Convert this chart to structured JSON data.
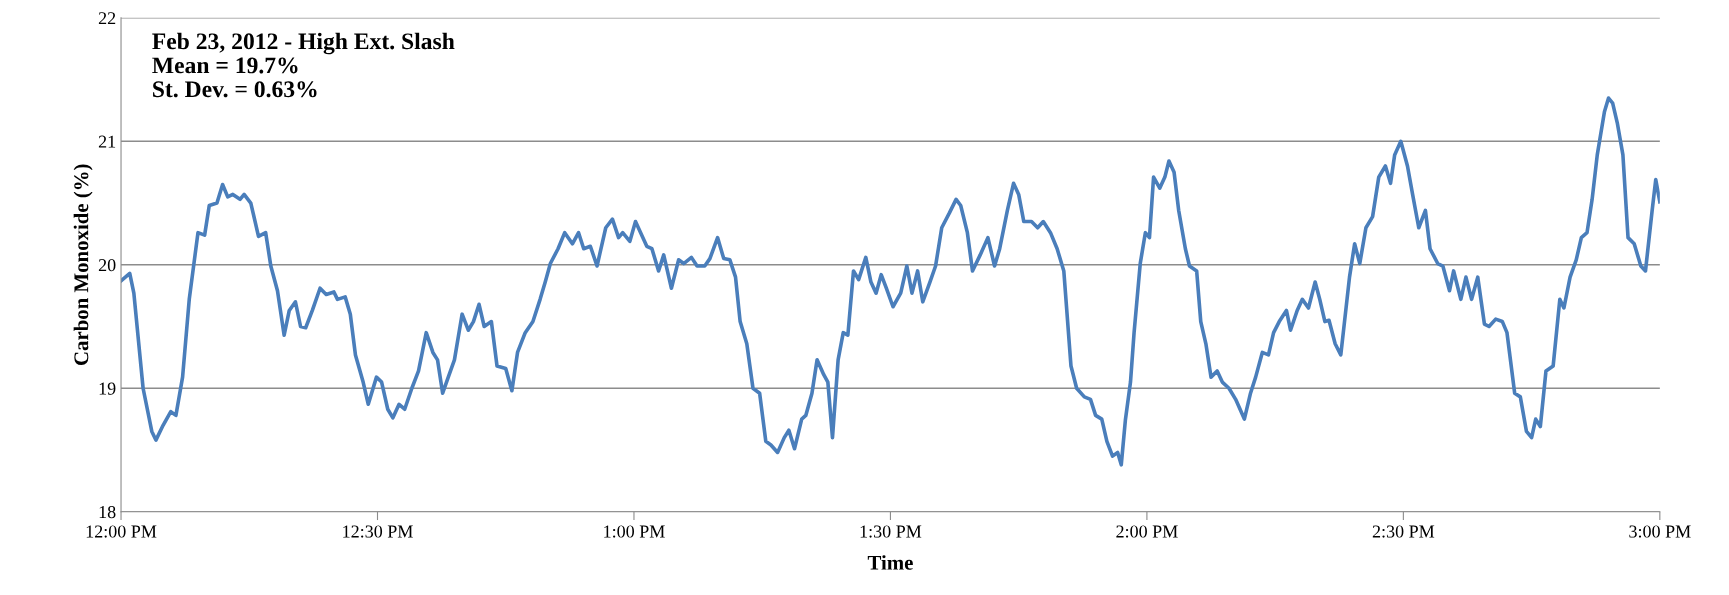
{
  "chart_data": {
    "type": "line",
    "xlabel": "Time",
    "ylabel": "Carbon Monoxide (%)",
    "annotations": [
      "Feb 23, 2012 - High Ext. Slash\nMean = 19.7%\nSt. Dev. = 0.63%"
    ],
    "xlim": [
      12,
      15
    ],
    "xticks": [
      {
        "value": 12,
        "label": "12:00 PM"
      },
      {
        "value": 12.5,
        "label": "12:30 PM"
      },
      {
        "value": 13,
        "label": "1:00 PM"
      },
      {
        "value": 13.5,
        "label": "1:30 PM"
      },
      {
        "value": 14,
        "label": "2:00 PM"
      },
      {
        "value": 14.5,
        "label": "2:30 PM"
      },
      {
        "value": 15,
        "label": "3:00 PM"
      }
    ],
    "ylim": [
      18,
      22
    ],
    "yticks": [
      18,
      19,
      20,
      21,
      22
    ],
    "grid": "y",
    "legend": false,
    "marker": "none",
    "line_style": "solid",
    "series": [
      {
        "color": "#4a7ebb",
        "x": [
          12.0,
          12.017,
          12.025,
          12.043,
          12.06,
          12.068,
          12.082,
          12.097,
          12.107,
          12.12,
          12.133,
          12.15,
          12.163,
          12.172,
          12.187,
          12.198,
          12.208,
          12.218,
          12.232,
          12.24,
          12.253,
          12.268,
          12.282,
          12.292,
          12.305,
          12.318,
          12.328,
          12.34,
          12.35,
          12.36,
          12.373,
          12.388,
          12.4,
          12.415,
          12.422,
          12.437,
          12.447,
          12.457,
          12.472,
          12.482,
          12.498,
          12.508,
          12.52,
          12.53,
          12.542,
          12.553,
          12.567,
          12.58,
          12.595,
          12.608,
          12.617,
          12.627,
          12.638,
          12.65,
          12.665,
          12.677,
          12.687,
          12.698,
          12.708,
          12.722,
          12.733,
          12.75,
          12.762,
          12.773,
          12.788,
          12.803,
          12.817,
          12.827,
          12.837,
          12.852,
          12.865,
          12.88,
          12.892,
          12.902,
          12.915,
          12.928,
          12.945,
          12.958,
          12.97,
          12.978,
          12.992,
          13.003,
          13.013,
          13.025,
          13.035,
          13.048,
          13.058,
          13.073,
          13.087,
          13.097,
          13.112,
          13.123,
          13.138,
          13.148,
          13.163,
          13.175,
          13.187,
          13.198,
          13.207,
          13.22,
          13.232,
          13.245,
          13.257,
          13.267,
          13.28,
          13.293,
          13.302,
          13.313,
          13.327,
          13.335,
          13.347,
          13.357,
          13.37,
          13.378,
          13.387,
          13.398,
          13.408,
          13.417,
          13.428,
          13.438,
          13.452,
          13.462,
          13.472,
          13.482,
          13.492,
          13.505,
          13.52,
          13.532,
          13.542,
          13.553,
          13.563,
          13.577,
          13.588,
          13.6,
          13.615,
          13.628,
          13.637,
          13.65,
          13.66,
          13.675,
          13.69,
          13.703,
          13.713,
          13.728,
          13.74,
          13.75,
          13.76,
          13.775,
          13.787,
          13.798,
          13.812,
          13.825,
          13.838,
          13.852,
          13.863,
          13.878,
          13.89,
          13.9,
          13.912,
          13.922,
          13.933,
          13.943,
          13.95,
          13.958,
          13.968,
          13.975,
          13.987,
          13.997,
          14.005,
          14.013,
          14.025,
          14.035,
          14.043,
          14.053,
          14.062,
          14.075,
          14.083,
          14.097,
          14.105,
          14.115,
          14.125,
          14.137,
          14.147,
          14.16,
          14.173,
          14.19,
          14.202,
          14.212,
          14.225,
          14.237,
          14.247,
          14.258,
          14.272,
          14.28,
          14.293,
          14.303,
          14.315,
          14.328,
          14.337,
          14.347,
          14.355,
          14.367,
          14.378,
          14.395,
          14.405,
          14.415,
          14.427,
          14.44,
          14.452,
          14.465,
          14.475,
          14.483,
          14.495,
          14.508,
          14.518,
          14.53,
          14.543,
          14.552,
          14.567,
          14.577,
          14.59,
          14.598,
          14.612,
          14.622,
          14.633,
          14.645,
          14.658,
          14.667,
          14.68,
          14.693,
          14.702,
          14.717,
          14.728,
          14.74,
          14.75,
          14.758,
          14.767,
          14.778,
          14.792,
          14.805,
          14.813,
          14.825,
          14.837,
          14.847,
          14.858,
          14.868,
          14.878,
          14.892,
          14.9,
          14.908,
          14.917,
          14.928,
          14.938,
          14.95,
          14.963,
          14.972,
          14.985,
          14.992,
          15.0
        ],
        "values": [
          19.87,
          19.93,
          19.77,
          19.0,
          18.65,
          18.58,
          18.7,
          18.81,
          18.78,
          19.09,
          19.72,
          20.26,
          20.24,
          20.48,
          20.5,
          20.65,
          20.55,
          20.57,
          20.53,
          20.57,
          20.5,
          20.23,
          20.26,
          19.99,
          19.79,
          19.43,
          19.63,
          19.7,
          19.5,
          19.49,
          19.63,
          19.81,
          19.76,
          19.78,
          19.72,
          19.74,
          19.6,
          19.27,
          19.05,
          18.87,
          19.09,
          19.05,
          18.83,
          18.76,
          18.87,
          18.83,
          19.0,
          19.14,
          19.45,
          19.29,
          19.23,
          18.96,
          19.09,
          19.23,
          19.6,
          19.47,
          19.54,
          19.68,
          19.5,
          19.54,
          19.18,
          19.16,
          18.98,
          19.29,
          19.45,
          19.54,
          19.72,
          19.86,
          20.01,
          20.13,
          20.26,
          20.17,
          20.26,
          20.13,
          20.15,
          19.99,
          20.3,
          20.37,
          20.22,
          20.26,
          20.19,
          20.35,
          20.26,
          20.15,
          20.13,
          19.95,
          20.08,
          19.81,
          20.04,
          20.01,
          20.06,
          19.99,
          19.99,
          20.05,
          20.22,
          20.05,
          20.04,
          19.9,
          19.54,
          19.36,
          19.0,
          18.96,
          18.57,
          18.54,
          18.48,
          18.6,
          18.66,
          18.51,
          18.75,
          18.78,
          18.96,
          19.23,
          19.11,
          19.05,
          18.6,
          19.23,
          19.45,
          19.43,
          19.95,
          19.88,
          20.06,
          19.86,
          19.77,
          19.92,
          19.81,
          19.66,
          19.77,
          19.99,
          19.77,
          19.95,
          19.7,
          19.86,
          19.99,
          20.3,
          20.42,
          20.53,
          20.48,
          20.26,
          19.95,
          20.08,
          20.22,
          19.99,
          20.13,
          20.44,
          20.66,
          20.57,
          20.35,
          20.35,
          20.3,
          20.35,
          20.26,
          20.13,
          19.95,
          19.18,
          19.0,
          18.93,
          18.91,
          18.78,
          18.75,
          18.57,
          18.45,
          18.48,
          18.38,
          18.74,
          19.05,
          19.45,
          20.01,
          20.26,
          20.22,
          20.71,
          20.62,
          20.71,
          20.84,
          20.75,
          20.44,
          20.13,
          19.99,
          19.95,
          19.54,
          19.36,
          19.09,
          19.14,
          19.05,
          19.0,
          18.91,
          18.75,
          18.96,
          19.09,
          19.29,
          19.27,
          19.45,
          19.54,
          19.63,
          19.47,
          19.63,
          19.72,
          19.65,
          19.86,
          19.72,
          19.54,
          19.55,
          19.36,
          19.27,
          19.9,
          20.17,
          20.01,
          20.3,
          20.39,
          20.71,
          20.8,
          20.66,
          20.89,
          21.0,
          20.8,
          20.57,
          20.3,
          20.44,
          20.13,
          20.01,
          19.99,
          19.79,
          19.95,
          19.72,
          19.9,
          19.72,
          19.9,
          19.52,
          19.5,
          19.56,
          19.54,
          19.45,
          18.96,
          18.93,
          18.65,
          18.6,
          18.75,
          18.69,
          19.14,
          19.18,
          19.72,
          19.65,
          19.9,
          20.04,
          20.22,
          20.26,
          20.53,
          20.89,
          21.24,
          21.35,
          21.31,
          21.15,
          20.89,
          20.22,
          20.17,
          19.99,
          19.95,
          20.44,
          20.69,
          20.51
        ]
      }
    ]
  }
}
